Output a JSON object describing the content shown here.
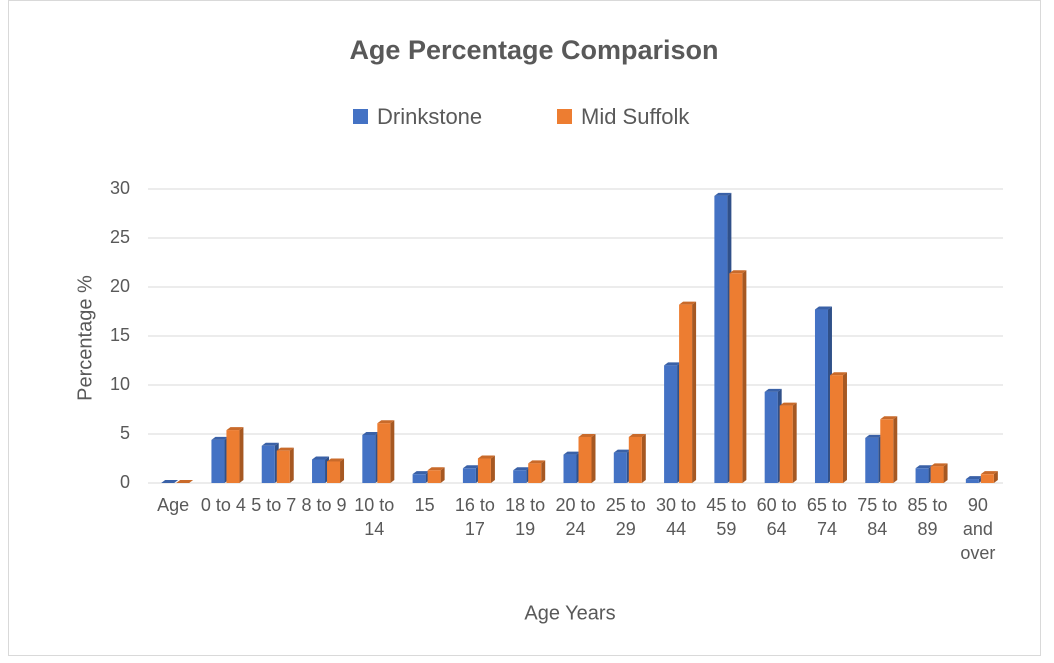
{
  "chart_data": {
    "type": "bar",
    "title": "Age Percentage Comparison",
    "x_label": "Age Years",
    "y_label": "Percentage %",
    "categories": [
      "Age",
      "0 to 4",
      "5 to 7",
      "8 to 9",
      "10 to 14",
      "15",
      "16 to 17",
      "18 to 19",
      "20 to 24",
      "25 to 29",
      "30 to 44",
      "45 to 59",
      "60 to 64",
      "65 to 74",
      "75 to 84",
      "85 to 89",
      "90 and over"
    ],
    "series": [
      {
        "name": "Drinkstone",
        "color": "#4472c4",
        "values": [
          0,
          4.4,
          3.8,
          2.4,
          4.9,
          0.9,
          1.5,
          1.3,
          2.9,
          3.1,
          12.0,
          29.3,
          9.3,
          17.7,
          4.6,
          1.5,
          0.4
        ]
      },
      {
        "name": "Mid Suffolk",
        "color": "#ed7d31",
        "values": [
          0,
          5.4,
          3.3,
          2.2,
          6.1,
          1.3,
          2.5,
          2.0,
          4.7,
          4.7,
          18.2,
          21.4,
          7.9,
          11.0,
          6.5,
          1.7,
          0.9
        ]
      }
    ],
    "ylim": [
      0,
      30
    ],
    "yticks": [
      0,
      5,
      10,
      15,
      20,
      25,
      30
    ],
    "grid": true,
    "legend": "top"
  }
}
